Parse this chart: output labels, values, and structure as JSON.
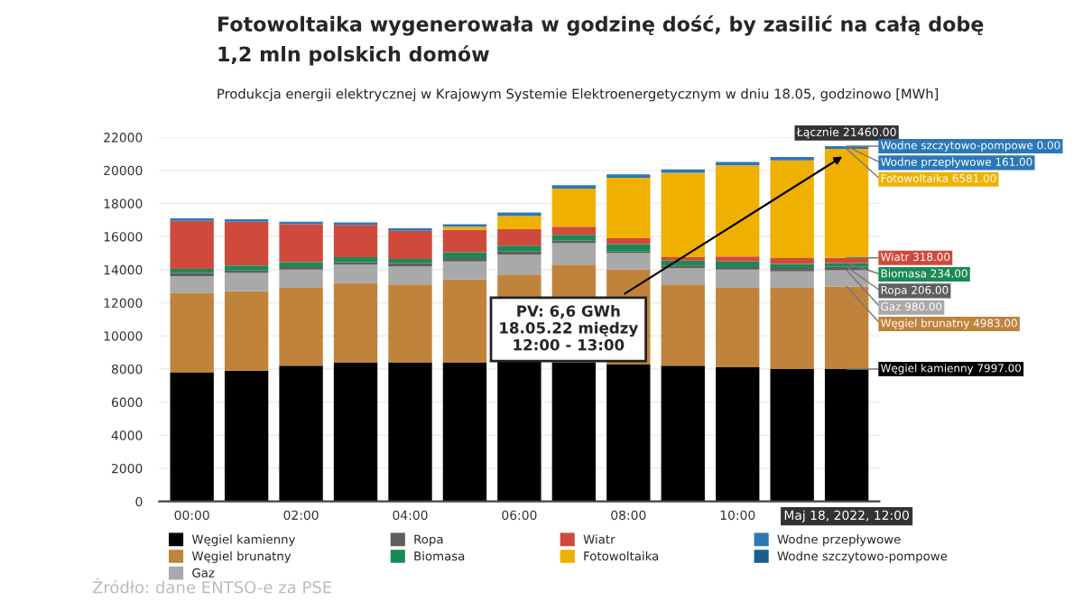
{
  "chart_data": {
    "type": "bar",
    "stacked": true,
    "title": "Fotowoltaika wygenerowała w godzinę dość, by zasilić na całą dobę\n1,2 mln polskich domów",
    "subtitle": "Produkcja energii elektrycznej w Krajowym Systemie Elektroenergetycznym w dniu 18.05, godzinowo [MWh]",
    "categories": [
      "00:00",
      null,
      "02:00",
      null,
      "04:00",
      null,
      "06:00",
      null,
      "08:00",
      null,
      "10:00",
      null,
      "Maj 18, 2022, 12:00"
    ],
    "series": [
      {
        "name": "Węgiel kamienny",
        "color": "#000000",
        "values": [
          7800,
          7900,
          8200,
          8400,
          8400,
          8400,
          8600,
          8400,
          8300,
          8200,
          8100,
          8000,
          7997
        ]
      },
      {
        "name": "Węgiel brunatny",
        "color": "#c0833c",
        "values": [
          4800,
          4800,
          4700,
          4800,
          4700,
          5000,
          5100,
          5900,
          5700,
          4900,
          4800,
          4900,
          4983
        ]
      },
      {
        "name": "Gaz",
        "color": "#a9a9a9",
        "values": [
          1000,
          1100,
          1100,
          1100,
          1100,
          1100,
          1200,
          1300,
          1000,
          1000,
          1100,
          1000,
          980
        ]
      },
      {
        "name": "Ropa",
        "color": "#5f5f5f",
        "values": [
          200,
          150,
          150,
          150,
          200,
          200,
          200,
          150,
          100,
          150,
          150,
          200,
          206
        ]
      },
      {
        "name": "Biomasa",
        "color": "#1a8a55",
        "values": [
          250,
          300,
          300,
          300,
          250,
          350,
          350,
          350,
          450,
          300,
          350,
          250,
          234
        ]
      },
      {
        "name": "Wiatr",
        "color": "#cf4a3c",
        "values": [
          2900,
          2650,
          2300,
          1950,
          1700,
          1350,
          1000,
          500,
          350,
          200,
          300,
          350,
          318
        ]
      },
      {
        "name": "Fotowoltaika",
        "color": "#f0b000",
        "values": [
          0,
          0,
          0,
          0,
          0,
          200,
          800,
          2300,
          3650,
          5100,
          5500,
          5900,
          6581
        ]
      },
      {
        "name": "Wodne przepływowe",
        "color": "#2a78b8",
        "values": [
          150,
          150,
          150,
          150,
          150,
          150,
          200,
          200,
          200,
          200,
          200,
          200,
          161
        ]
      },
      {
        "name": "Wodne szczytowo-pompowe",
        "color": "#1b5e8c",
        "values": [
          0,
          0,
          0,
          0,
          0,
          0,
          0,
          0,
          0,
          0,
          0,
          0,
          0
        ]
      }
    ],
    "totals": [
      null,
      null,
      null,
      null,
      null,
      null,
      null,
      null,
      null,
      null,
      null,
      null,
      "Łącznie 21460.00"
    ],
    "ylim": [
      0,
      22000
    ],
    "yticks": [
      0,
      2000,
      4000,
      6000,
      8000,
      10000,
      12000,
      14000,
      16000,
      18000,
      20000,
      22000
    ],
    "grid": "y",
    "legend": "bottom",
    "annotations": [
      {
        "text": "PV: 6,6 GWh\n18.05.22 między\n12:00 - 13:00",
        "x": "Maj 18, 2022, 12:00",
        "y": 21000
      },
      {
        "text": "Wodne szczytowo-pompowe 0.00",
        "x": "Maj 18, 2022, 12:00",
        "y": 21460
      },
      {
        "text": "Wodne przepływowe 161.00",
        "x": "Maj 18, 2022, 12:00",
        "y": 21460
      },
      {
        "text": "Fotowoltaika 6581.00",
        "x": "Maj 18, 2022, 12:00",
        "y": 21299
      },
      {
        "text": "Wiatr 318.00",
        "x": "Maj 18, 2022, 12:00",
        "y": 14718
      },
      {
        "text": "Biomasa 234.00",
        "x": "Maj 18, 2022, 12:00",
        "y": 14400
      },
      {
        "text": "Ropa 206.00",
        "x": "Maj 18, 2022, 12:00",
        "y": 14166
      },
      {
        "text": "Gaz 980.00",
        "x": "Maj 18, 2022, 12:00",
        "y": 13960
      },
      {
        "text": "Węgiel brunatny 4983.00",
        "x": "Maj 18, 2022, 12:00",
        "y": 12980
      },
      {
        "text": "Węgiel kamienny 7997.00",
        "x": "Maj 18, 2022, 12:00",
        "y": 7997
      },
      "Źródło: dane ENTSO-e za PSE"
    ]
  }
}
